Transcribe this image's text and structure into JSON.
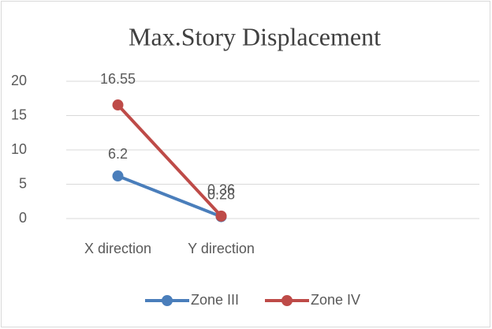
{
  "chart_data": {
    "type": "line",
    "title": "Max.Story Displacement",
    "categories": [
      "X direction",
      "Y direction",
      null,
      null
    ],
    "series": [
      {
        "name": "Zone III",
        "color": "#4a7ebb",
        "values": [
          6.2,
          0.28,
          null,
          null
        ]
      },
      {
        "name": "Zone IV",
        "color": "#be4b48",
        "values": [
          16.55,
          0.36,
          null,
          null
        ]
      }
    ],
    "ylim": [
      0,
      20
    ],
    "yticks": [
      0,
      5,
      10,
      15,
      20
    ],
    "grid": true,
    "legend": "bottom"
  }
}
